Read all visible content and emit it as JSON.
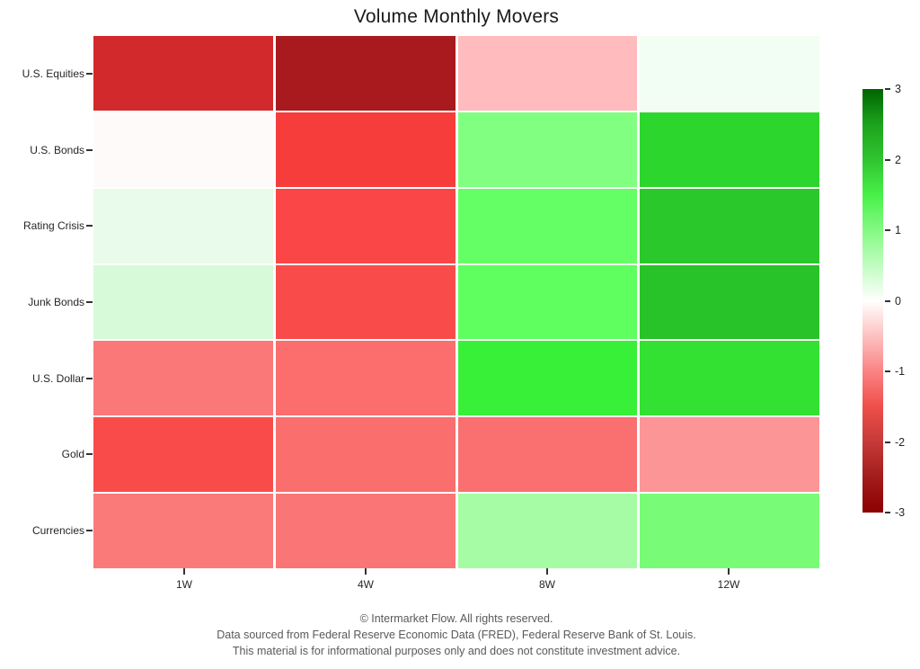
{
  "chart_data": {
    "type": "heatmap",
    "title": "Volume Monthly Movers",
    "xlabel": "",
    "ylabel": "",
    "categories_x": [
      "1W",
      "4W",
      "8W",
      "12W"
    ],
    "categories_y": [
      "U.S. Equities",
      "U.S. Bonds",
      "Rating Crisis",
      "Junk Bonds",
      "U.S. Dollar",
      "Gold",
      "Currencies"
    ],
    "rows": [
      {
        "label": "U.S. Equities",
        "values": [
          -2.1,
          -2.6,
          -0.55,
          0.1
        ],
        "colors": [
          "#d2292c",
          "#a81a1d",
          "#ffbbbd",
          "#f2fdf3"
        ]
      },
      {
        "label": "U.S. Bonds",
        "values": [
          -0.05,
          -1.6,
          1.0,
          1.9
        ],
        "colors": [
          "#fffafa",
          "#f73c3c",
          "#80ff80",
          "#2dd62d"
        ]
      },
      {
        "label": "Rating Crisis",
        "values": [
          0.15,
          -1.5,
          1.2,
          2.0
        ],
        "colors": [
          "#e9fbea",
          "#fa4646",
          "#64ff64",
          "#2ac82a"
        ]
      },
      {
        "label": "Junk Bonds",
        "values": [
          0.3,
          -1.45,
          1.25,
          2.1
        ],
        "colors": [
          "#d7fad9",
          "#fa4b4b",
          "#5fff5f",
          "#28c328"
        ]
      },
      {
        "label": "U.S. Dollar",
        "values": [
          -1.0,
          -1.1,
          1.7,
          1.8
        ],
        "colors": [
          "#fa7878",
          "#fc6e6e",
          "#39f039",
          "#32e132"
        ]
      },
      {
        "label": "Gold",
        "values": [
          -1.45,
          -1.1,
          -1.05,
          -0.8
        ],
        "colors": [
          "#fa4b4b",
          "#fa6e6e",
          "#fa7070",
          "#fc9696"
        ]
      },
      {
        "label": "Currencies",
        "values": [
          -1.0,
          -1.05,
          0.7,
          1.05
        ],
        "colors": [
          "#fa7a7a",
          "#fa7676",
          "#a5fca5",
          "#78fc78"
        ]
      }
    ],
    "colorbar": {
      "min": -3,
      "max": 3,
      "ticks": [
        "3",
        "2",
        "1",
        "0",
        "-1",
        "-2",
        "-3"
      ],
      "tick_values": [
        3,
        2,
        1,
        0,
        -1,
        -2,
        -3
      ],
      "gradient_stops": [
        {
          "value": -3,
          "color": "#8b0000"
        },
        {
          "value": -2.5,
          "color": "#a31c1c"
        },
        {
          "value": -2,
          "color": "#c53a38"
        },
        {
          "value": -1.5,
          "color": "#ef4f49"
        },
        {
          "value": -1,
          "color": "#fa8383"
        },
        {
          "value": 0,
          "color": "#ffffff"
        },
        {
          "value": 1,
          "color": "#83fa83"
        },
        {
          "value": 1.5,
          "color": "#49f049"
        },
        {
          "value": 2,
          "color": "#30c430"
        },
        {
          "value": 2.5,
          "color": "#1ca31c"
        },
        {
          "value": 3,
          "color": "#006400"
        }
      ]
    },
    "legend_position": "right",
    "grid": false,
    "gridline_color": "#ffffff"
  },
  "footer": {
    "line1": "© Intermarket Flow. All rights reserved.",
    "line2": "Data sourced from Federal Reserve Economic Data (FRED), Federal Reserve Bank of St. Louis.",
    "line3": "This material is for informational purposes only and does not constitute investment advice."
  },
  "colors": {
    "background": "#ffffff",
    "title_text": "#1a1a1a",
    "axis_text": "#262626",
    "footer_text": "#595959",
    "tick_mark": "#333333"
  }
}
